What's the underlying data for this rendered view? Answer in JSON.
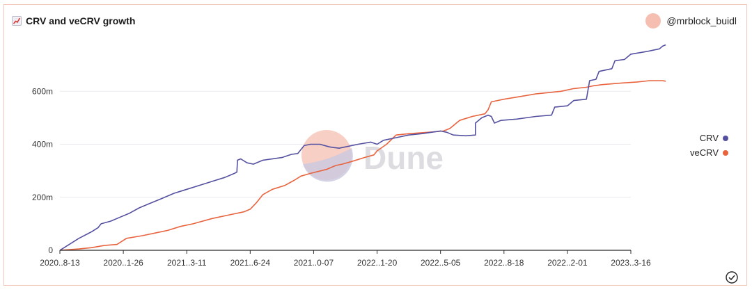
{
  "header": {
    "title": "CRV and veCRV growth",
    "title_icon": "chart-increasing-icon",
    "author": "@mrblock_buidl",
    "author_avatar_color": "#f6beb0"
  },
  "watermark": {
    "text": "Dune"
  },
  "colors": {
    "CRV": "#5450a0",
    "veCRV": "#e8633e",
    "card_border": "#f2c7bb"
  },
  "chart_data": {
    "type": "line",
    "title": "CRV and veCRV growth",
    "xlabel": "",
    "ylabel": "",
    "ylim": [
      0,
      800
    ],
    "yticks": [
      0,
      200,
      400,
      600
    ],
    "ytick_labels": [
      "0",
      "200m",
      "400m",
      "600m"
    ],
    "xticks": [
      "2020..8-13",
      "2020..1-26",
      "2021..3-11",
      "2021..6-24",
      "2021..0-07",
      "2022..1-20",
      "2022..5-05",
      "2022..8-18",
      "2022..2-01",
      "2023..3-16"
    ],
    "grid": true,
    "legend_position": "right",
    "x_index_range": [
      0,
      9
    ],
    "series": [
      {
        "name": "CRV",
        "color": "#5450a0",
        "points": [
          [
            0,
            0
          ],
          [
            0.1,
            15
          ],
          [
            0.3,
            45
          ],
          [
            0.5,
            70
          ],
          [
            0.6,
            85
          ],
          [
            0.65,
            100
          ],
          [
            0.8,
            110
          ],
          [
            0.95,
            125
          ],
          [
            1.1,
            140
          ],
          [
            1.25,
            160
          ],
          [
            1.4,
            175
          ],
          [
            1.6,
            195
          ],
          [
            1.8,
            215
          ],
          [
            2.0,
            230
          ],
          [
            2.2,
            245
          ],
          [
            2.4,
            260
          ],
          [
            2.6,
            275
          ],
          [
            2.75,
            290
          ],
          [
            2.79,
            295
          ],
          [
            2.8,
            340
          ],
          [
            2.85,
            345
          ],
          [
            2.95,
            330
          ],
          [
            3.05,
            325
          ],
          [
            3.2,
            340
          ],
          [
            3.5,
            350
          ],
          [
            3.65,
            362
          ],
          [
            3.75,
            365
          ],
          [
            3.85,
            395
          ],
          [
            3.95,
            400
          ],
          [
            4.1,
            400
          ],
          [
            4.25,
            390
          ],
          [
            4.4,
            385
          ],
          [
            4.5,
            390
          ],
          [
            4.7,
            400
          ],
          [
            4.9,
            408
          ],
          [
            5.0,
            400
          ],
          [
            5.1,
            415
          ],
          [
            5.3,
            425
          ],
          [
            5.5,
            435
          ],
          [
            5.7,
            440
          ],
          [
            6.0,
            450
          ],
          [
            6.1,
            445
          ],
          [
            6.2,
            435
          ],
          [
            6.4,
            432
          ],
          [
            6.55,
            435
          ],
          [
            6.55,
            480
          ],
          [
            6.65,
            500
          ],
          [
            6.75,
            510
          ],
          [
            6.8,
            505
          ],
          [
            6.85,
            480
          ],
          [
            6.95,
            490
          ],
          [
            7.2,
            495
          ],
          [
            7.5,
            505
          ],
          [
            7.75,
            510
          ],
          [
            7.8,
            540
          ],
          [
            8.0,
            545
          ],
          [
            8.1,
            565
          ],
          [
            8.3,
            570
          ],
          [
            8.35,
            640
          ],
          [
            8.45,
            645
          ],
          [
            8.5,
            675
          ],
          [
            8.7,
            685
          ],
          [
            8.75,
            715
          ],
          [
            8.9,
            720
          ],
          [
            9.0,
            740
          ],
          [
            9.25,
            750
          ],
          [
            9.35,
            755
          ],
          [
            9.45,
            760
          ],
          [
            9.5,
            770
          ],
          [
            9.55,
            775
          ]
        ]
      },
      {
        "name": "veCRV",
        "color": "#e8633e",
        "points": [
          [
            0,
            0
          ],
          [
            0.3,
            5
          ],
          [
            0.5,
            10
          ],
          [
            0.7,
            18
          ],
          [
            0.9,
            22
          ],
          [
            1.05,
            45
          ],
          [
            1.3,
            55
          ],
          [
            1.5,
            65
          ],
          [
            1.7,
            75
          ],
          [
            1.9,
            90
          ],
          [
            2.1,
            100
          ],
          [
            2.4,
            120
          ],
          [
            2.7,
            135
          ],
          [
            2.9,
            145
          ],
          [
            3.0,
            155
          ],
          [
            3.1,
            180
          ],
          [
            3.2,
            210
          ],
          [
            3.35,
            230
          ],
          [
            3.55,
            245
          ],
          [
            3.7,
            265
          ],
          [
            3.8,
            280
          ],
          [
            3.95,
            290
          ],
          [
            4.2,
            305
          ],
          [
            4.35,
            320
          ],
          [
            4.45,
            325
          ],
          [
            4.6,
            335
          ],
          [
            4.8,
            350
          ],
          [
            4.95,
            360
          ],
          [
            5.0,
            375
          ],
          [
            5.15,
            400
          ],
          [
            5.3,
            435
          ],
          [
            5.5,
            440
          ],
          [
            5.8,
            445
          ],
          [
            6.05,
            450
          ],
          [
            6.15,
            460
          ],
          [
            6.3,
            490
          ],
          [
            6.5,
            505
          ],
          [
            6.7,
            515
          ],
          [
            6.75,
            530
          ],
          [
            6.8,
            560
          ],
          [
            7.0,
            570
          ],
          [
            7.25,
            580
          ],
          [
            7.5,
            590
          ],
          [
            7.7,
            595
          ],
          [
            7.9,
            600
          ],
          [
            8.1,
            610
          ],
          [
            8.3,
            615
          ],
          [
            8.4,
            620
          ],
          [
            8.55,
            625
          ],
          [
            8.8,
            630
          ],
          [
            9.1,
            635
          ],
          [
            9.3,
            640
          ],
          [
            9.5,
            640
          ],
          [
            9.55,
            638
          ]
        ]
      }
    ]
  },
  "footer": {
    "status_icon": "check-circle-icon"
  }
}
